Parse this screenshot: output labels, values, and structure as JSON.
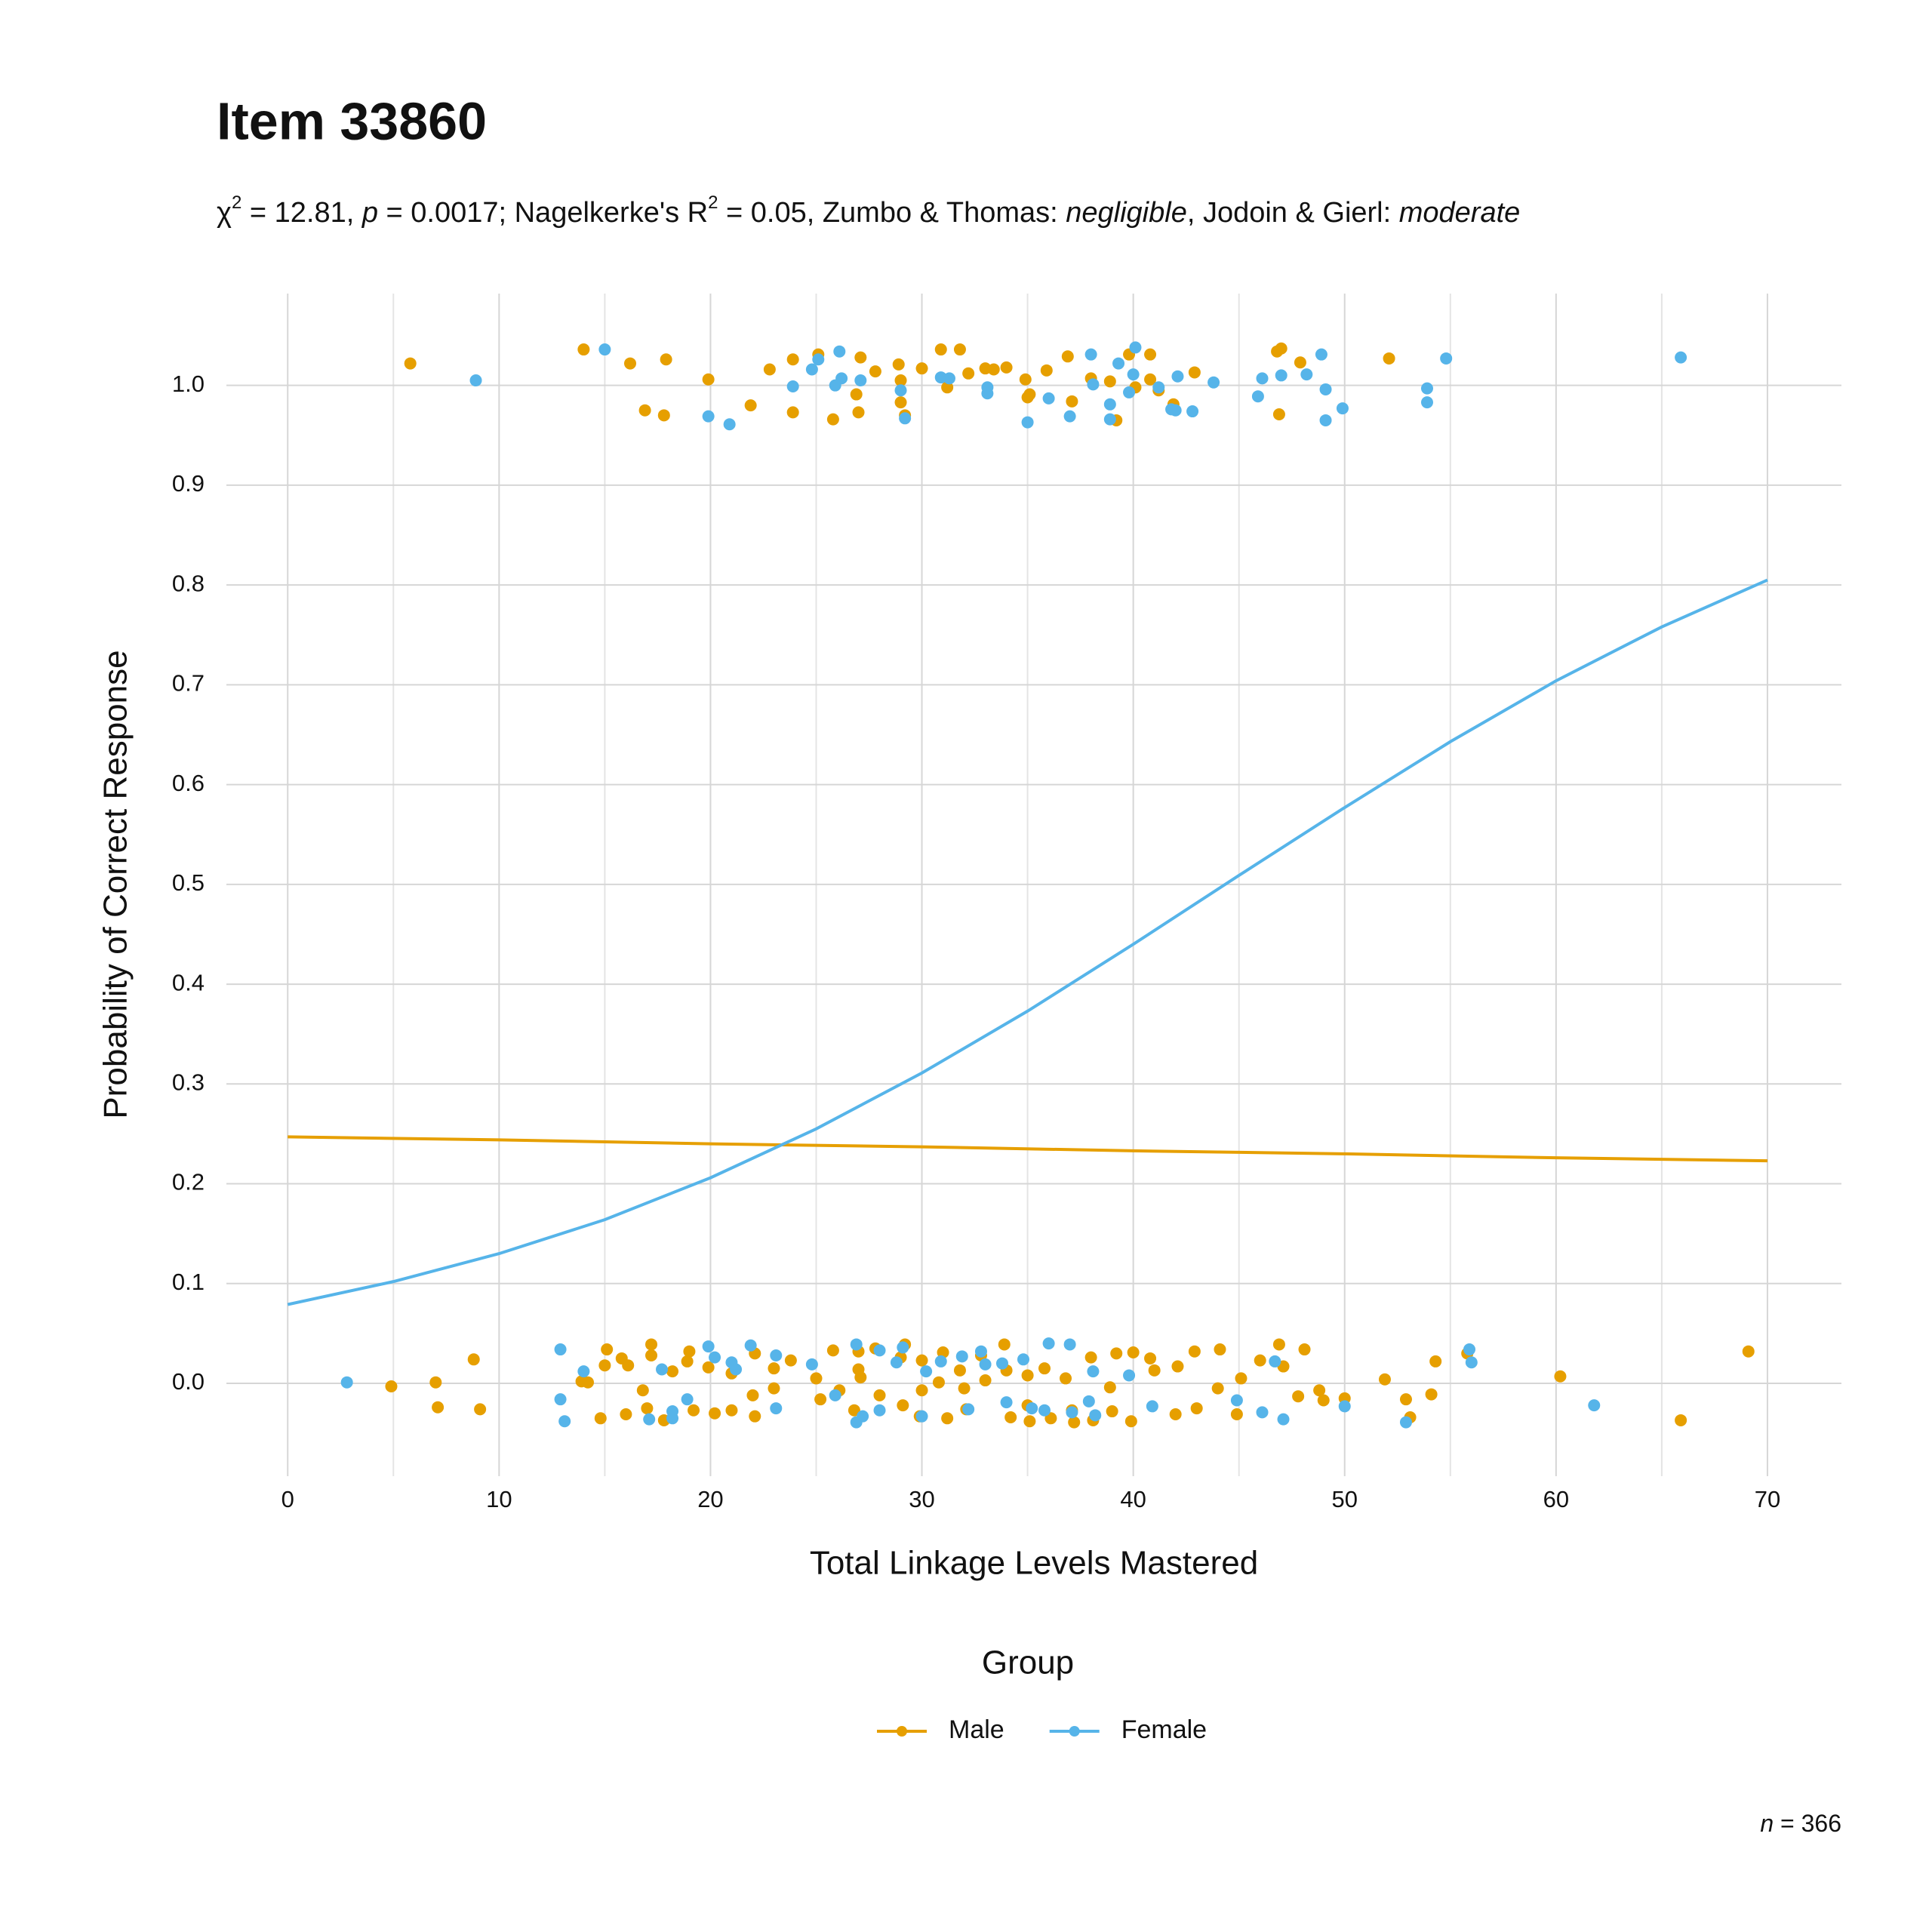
{
  "chart_data": {
    "type": "scatter",
    "title": "Item 33860",
    "subtitle": [
      {
        "text": "χ",
        "style": "normal"
      },
      {
        "text": "2",
        "style": "sup"
      },
      {
        "text": " = 12.81, ",
        "style": "normal"
      },
      {
        "text": "p",
        "style": "italic"
      },
      {
        "text": " = 0.0017; Nagelkerke's R",
        "style": "normal"
      },
      {
        "text": "2",
        "style": "sup"
      },
      {
        "text": " = 0.05, Zumbo & Thomas: ",
        "style": "normal"
      },
      {
        "text": "negligible",
        "style": "italic"
      },
      {
        "text": ", Jodoin & Gierl: ",
        "style": "normal"
      },
      {
        "text": "moderate",
        "style": "italic"
      }
    ],
    "x_label": "Total Linkage Levels Mastered",
    "y_label": "Probability of Correct Response",
    "xlim": [
      -2.9,
      73.5
    ],
    "ylim": [
      -0.093,
      1.092
    ],
    "xticks": [
      0,
      10,
      20,
      30,
      40,
      50,
      60,
      70
    ],
    "xminor": [
      5,
      15,
      25,
      35,
      45,
      55,
      65
    ],
    "yticks": [
      {
        "value": 0,
        "label": "0.0"
      },
      0.1,
      0.2,
      0.3,
      0.4,
      0.5,
      0.6,
      0.7,
      0.8,
      0.9,
      {
        "value": 1,
        "label": "1.0"
      }
    ],
    "grid": true,
    "legend_title": "Group",
    "legend_position": "bottom",
    "caption": [
      {
        "text": "n",
        "style": "italic"
      },
      {
        "text": " = 366",
        "style": "normal"
      }
    ],
    "series": [
      {
        "name": "Male",
        "color": "#E69F00",
        "x": [
          5.8,
          14,
          16.2,
          16.9,
          17.8,
          17.9,
          19.9,
          21.9,
          22.8,
          23.9,
          23.9,
          25.1,
          25.8,
          26.9,
          27,
          27.1,
          27.8,
          28.9,
          29,
          29,
          29.2,
          30,
          30.9,
          31.2,
          31.8,
          32.2,
          33,
          33.4,
          34,
          34.9,
          35,
          35.1,
          35.9,
          36.9,
          37.1,
          38,
          38.9,
          39.2,
          39.8,
          40.1,
          40.8,
          40.8,
          41.2,
          41.9,
          42.9,
          46.8,
          46.9,
          47,
          47.9,
          52.1,
          4.9,
          7,
          7.1,
          8.8,
          9.1,
          13.9,
          14.2,
          14.8,
          15,
          15.1,
          15.8,
          16,
          16.1,
          16.8,
          17,
          17.2,
          17.2,
          17.8,
          18.2,
          18.9,
          19,
          19.2,
          19.9,
          20.2,
          21,
          21,
          22,
          22.1,
          22.1,
          23,
          23,
          23.8,
          25,
          25.2,
          25.8,
          26.1,
          26.8,
          27,
          27,
          27.1,
          27.8,
          28,
          29,
          29.1,
          29.2,
          29.9,
          30,
          30,
          30.8,
          31,
          31.2,
          31.8,
          32,
          32.1,
          32.8,
          33,
          33.9,
          34,
          34.2,
          35,
          35,
          35.1,
          35.8,
          36.1,
          36.8,
          37.1,
          37.2,
          38,
          38.1,
          38.9,
          39,
          39.2,
          39.9,
          40,
          40.8,
          41,
          42,
          42.1,
          42.9,
          43,
          44,
          44.1,
          44.9,
          45.1,
          46,
          46.9,
          47.1,
          47.8,
          48.1,
          48.8,
          49,
          50,
          51.9,
          52.9,
          53.1,
          54.1,
          54.3,
          55.8,
          60.2,
          65.9,
          69.1
        ],
        "values": [
          1.022,
          1.036,
          1.022,
          0.975,
          0.97,
          1.026,
          1.006,
          0.98,
          1.016,
          0.973,
          1.026,
          1.031,
          0.966,
          0.991,
          0.973,
          1.028,
          1.014,
          1.021,
          0.983,
          1.005,
          0.97,
          1.017,
          1.036,
          0.998,
          1.036,
          1.012,
          1.017,
          1.016,
          1.018,
          1.006,
          0.988,
          0.991,
          1.015,
          1.029,
          0.984,
          1.007,
          1.004,
          0.965,
          1.031,
          0.998,
          1.006,
          1.031,
          0.995,
          0.981,
          1.013,
          1.034,
          0.971,
          1.037,
          1.023,
          1.027,
          -0.003,
          0.001,
          -0.024,
          0.024,
          -0.026,
          0.002,
          0.001,
          -0.035,
          0.018,
          0.034,
          0.025,
          -0.031,
          0.018,
          -0.007,
          -0.025,
          0.028,
          0.039,
          -0.037,
          0.012,
          0.022,
          0.032,
          -0.027,
          0.016,
          -0.03,
          0.01,
          -0.027,
          -0.012,
          -0.033,
          0.03,
          0.015,
          -0.005,
          0.023,
          0.005,
          -0.016,
          0.033,
          -0.007,
          -0.027,
          0.014,
          0.032,
          0.006,
          0.035,
          -0.012,
          0.026,
          -0.022,
          0.039,
          -0.033,
          0.023,
          -0.007,
          0.001,
          0.031,
          -0.035,
          0.013,
          -0.005,
          -0.026,
          0.028,
          0.003,
          0.039,
          0.013,
          -0.034,
          -0.022,
          0.008,
          -0.038,
          0.015,
          -0.035,
          0.005,
          -0.027,
          -0.039,
          0.026,
          -0.037,
          -0.004,
          -0.028,
          0.03,
          -0.038,
          0.031,
          0.025,
          0.013,
          -0.031,
          0.017,
          0.032,
          -0.025,
          -0.005,
          0.034,
          -0.031,
          0.005,
          0.023,
          0.039,
          0.017,
          -0.013,
          0.034,
          -0.007,
          -0.017,
          -0.015,
          0.004,
          -0.016,
          -0.034,
          -0.011,
          0.022,
          0.03,
          0.007,
          -0.037,
          0.032
        ],
        "fit_x": [
          0,
          10,
          20,
          30,
          40,
          50,
          60,
          70
        ],
        "fit_values": [
          0.247,
          0.244,
          0.24,
          0.237,
          0.233,
          0.23,
          0.226,
          0.223
        ]
      },
      {
        "name": "Female",
        "color": "#56B4E9",
        "x": [
          8.9,
          15,
          19.9,
          20.9,
          23.9,
          24.8,
          25.1,
          25.9,
          26.1,
          26.2,
          27.1,
          29,
          29.2,
          30.9,
          31.3,
          33.1,
          33.1,
          35,
          36,
          37,
          38,
          38.1,
          38.9,
          38.9,
          39.3,
          39.8,
          40,
          40.1,
          41.2,
          41.8,
          42,
          42.1,
          42.8,
          43.8,
          45.9,
          46.1,
          47,
          48.2,
          48.9,
          49.1,
          49.1,
          49.9,
          53.9,
          53.9,
          54.8,
          65.9,
          2.8,
          12.9,
          12.9,
          13.1,
          14,
          17.1,
          17.7,
          18.2,
          18.2,
          18.9,
          19.9,
          20.2,
          21,
          21.2,
          21.9,
          23.1,
          23.1,
          24.8,
          25.9,
          26.9,
          26.9,
          27.2,
          28,
          28,
          28.8,
          29.1,
          30,
          30.2,
          30.9,
          31.9,
          32.2,
          32.8,
          33,
          33.8,
          34,
          34.8,
          35.2,
          35.8,
          36,
          37,
          37.1,
          37.9,
          38.1,
          38.2,
          39.8,
          40.9,
          44.9,
          46.1,
          46.7,
          47.1,
          50,
          52.9,
          55.9,
          56,
          61.8
        ],
        "values": [
          1.005,
          1.036,
          0.969,
          0.961,
          0.999,
          1.016,
          1.026,
          1.0,
          1.034,
          1.007,
          1.005,
          0.995,
          0.967,
          1.008,
          1.007,
          0.992,
          0.998,
          0.963,
          0.987,
          0.969,
          1.031,
          1.001,
          0.981,
          0.966,
          1.022,
          0.993,
          1.011,
          1.038,
          0.998,
          0.976,
          0.975,
          1.009,
          0.974,
          1.003,
          0.989,
          1.007,
          1.01,
          1.011,
          1.031,
          0.996,
          0.965,
          0.977,
          0.997,
          0.983,
          1.027,
          1.028,
          0.001,
          0.034,
          -0.016,
          -0.038,
          0.012,
          -0.036,
          0.014,
          -0.035,
          -0.028,
          -0.016,
          0.037,
          0.026,
          0.021,
          0.014,
          0.038,
          0.028,
          -0.025,
          0.019,
          -0.012,
          0.039,
          -0.039,
          -0.033,
          -0.027,
          0.033,
          0.021,
          0.036,
          -0.033,
          0.012,
          0.022,
          0.027,
          -0.026,
          0.032,
          0.019,
          0.02,
          -0.019,
          0.024,
          -0.025,
          -0.027,
          0.04,
          0.039,
          -0.029,
          -0.018,
          0.012,
          -0.032,
          0.008,
          -0.023,
          -0.017,
          -0.029,
          0.022,
          -0.036,
          -0.023,
          -0.039,
          0.034,
          0.021,
          -0.022
        ],
        "fit_x": [
          0,
          5,
          10,
          15,
          20,
          25,
          30,
          35,
          40,
          45,
          50,
          55,
          60,
          65,
          70
        ],
        "fit_values": [
          0.079,
          0.102,
          0.13,
          0.164,
          0.206,
          0.255,
          0.311,
          0.373,
          0.44,
          0.509,
          0.577,
          0.643,
          0.704,
          0.758,
          0.805
        ]
      }
    ]
  }
}
